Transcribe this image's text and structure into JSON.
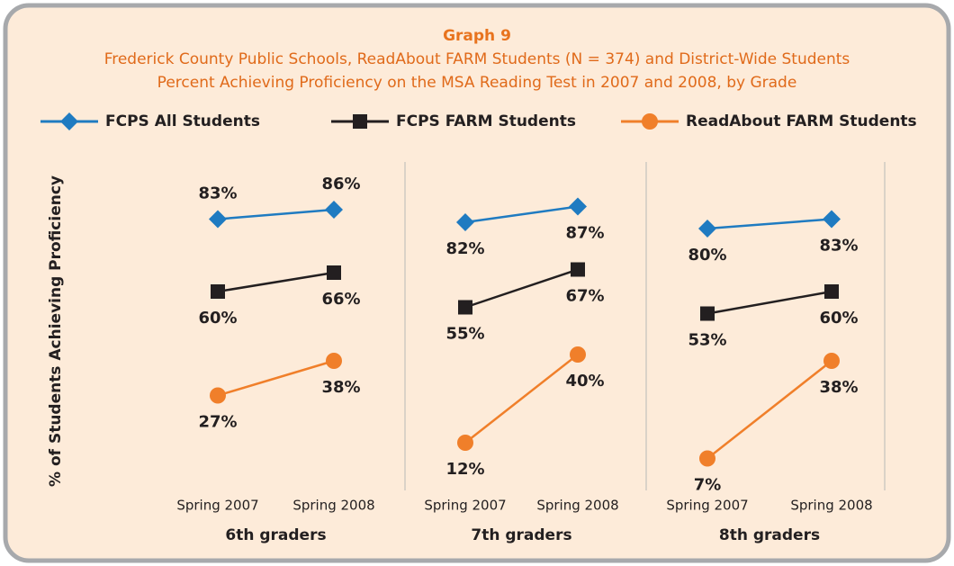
{
  "chart_data": {
    "type": "line",
    "title": "Graph 9",
    "subtitle": [
      "Frederick County Public Schools, ReadAbout FARM Students (N = 374) and District-Wide Students",
      "Percent Achieving Proficiency on the MSA Reading Test in 2007 and 2008, by Grade"
    ],
    "ylabel": "% of Students Achieving Proficiency",
    "ylim": [
      0,
      100
    ],
    "series": [
      {
        "name": "FCPS All Students",
        "color": "#1f7bc1",
        "marker": "diamond"
      },
      {
        "name": "FCPS FARM Students",
        "color": "#231f20",
        "marker": "square"
      },
      {
        "name": "ReadAbout FARM Students",
        "color": "#f07f2a",
        "marker": "circle"
      }
    ],
    "groups": [
      {
        "label": "6th graders",
        "categories": [
          "Spring 2007",
          "Spring 2008"
        ],
        "values": [
          [
            83,
            86
          ],
          [
            60,
            66
          ],
          [
            27,
            38
          ]
        ],
        "value_labels": [
          [
            "83%",
            "86%"
          ],
          [
            "60%",
            "66%"
          ],
          [
            "27%",
            "38%"
          ]
        ]
      },
      {
        "label": "7th graders",
        "categories": [
          "Spring 2007",
          "Spring 2008"
        ],
        "values": [
          [
            82,
            87
          ],
          [
            55,
            67
          ],
          [
            12,
            40
          ]
        ],
        "value_labels": [
          [
            "82%",
            "87%"
          ],
          [
            "55%",
            "67%"
          ],
          [
            "12%",
            "40%"
          ]
        ]
      },
      {
        "label": "8th graders",
        "categories": [
          "Spring 2007",
          "Spring 2008"
        ],
        "values": [
          [
            80,
            83
          ],
          [
            53,
            60
          ],
          [
            7,
            38
          ]
        ],
        "value_labels": [
          [
            "80%",
            "83%"
          ],
          [
            "53%",
            "60%"
          ],
          [
            "7%",
            "38%"
          ]
        ]
      }
    ]
  }
}
